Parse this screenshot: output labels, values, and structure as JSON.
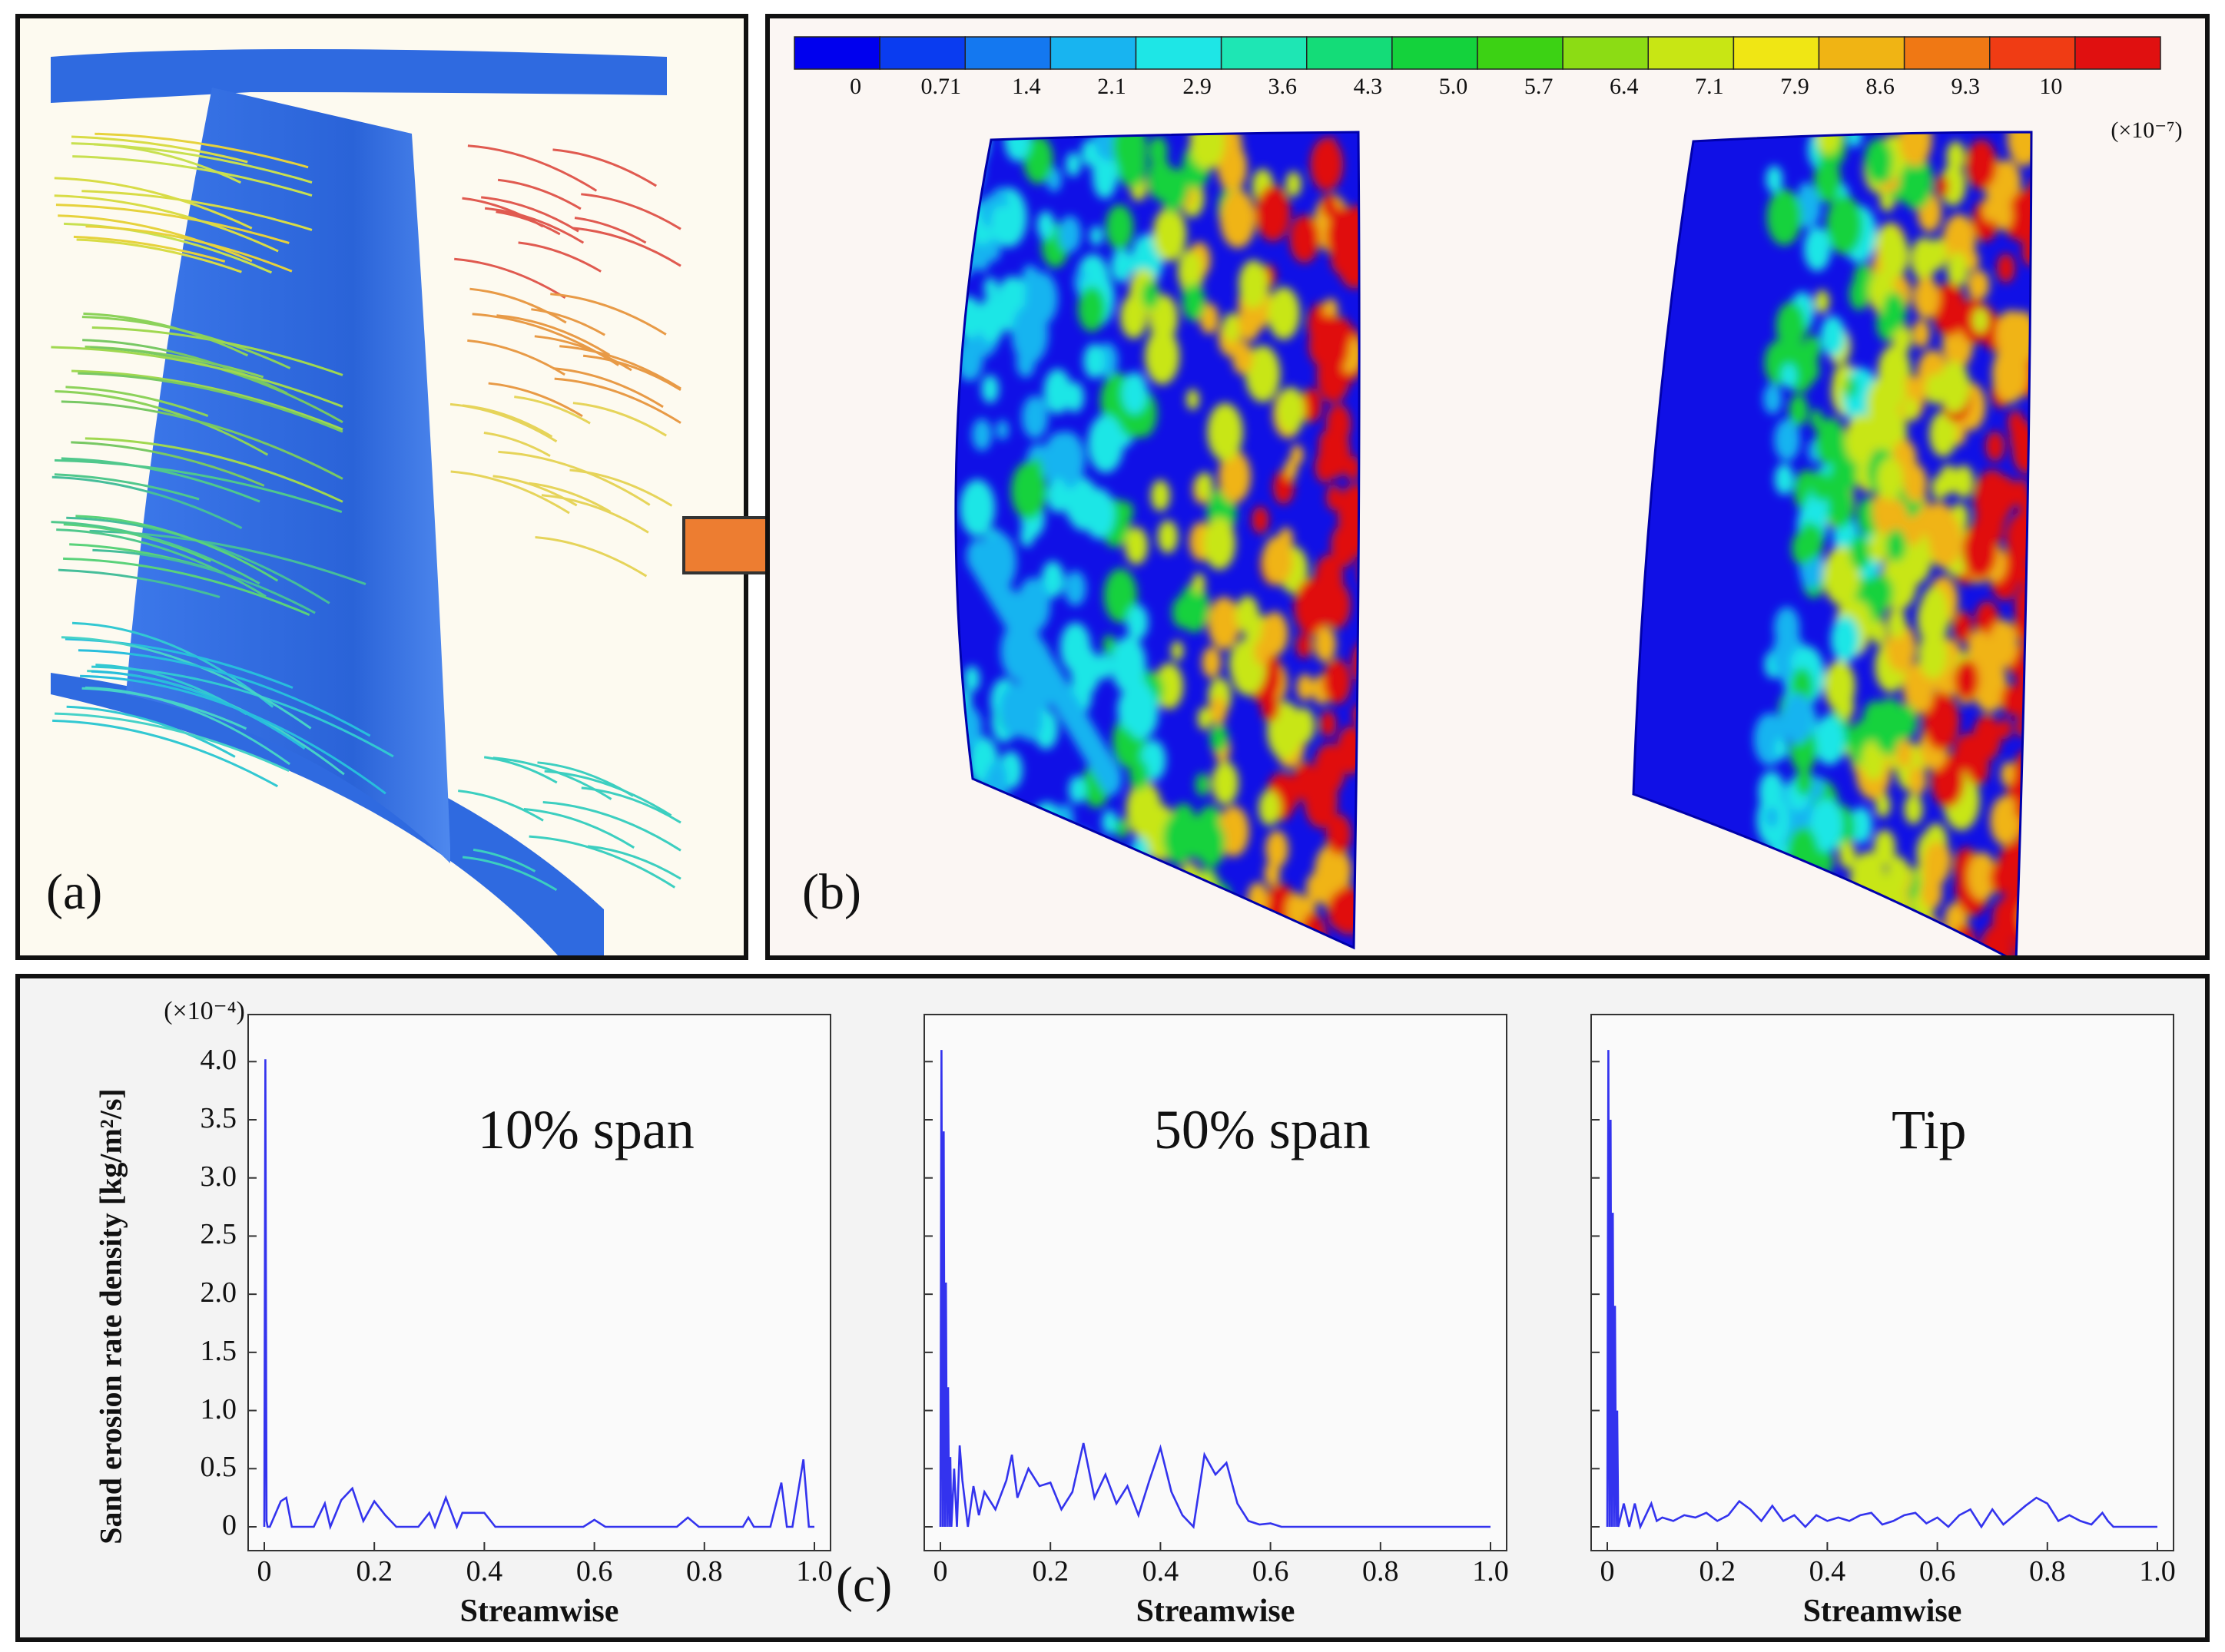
{
  "panel_labels": {
    "a": "(a)",
    "b": "(b)",
    "c": "(c)"
  },
  "colorbar": {
    "ticks": [
      "0",
      "0.71",
      "1.4",
      "2.1",
      "2.9",
      "3.6",
      "4.3",
      "5.0",
      "5.7",
      "6.4",
      "7.1",
      "7.9",
      "8.6",
      "9.3",
      "10"
    ],
    "multiplier": "(×10⁻⁷)",
    "colors": [
      "#0000ee",
      "#0a3cf0",
      "#1478f0",
      "#18b4f0",
      "#1ee6e6",
      "#1ee6b4",
      "#14dc78",
      "#14d23c",
      "#3cd214",
      "#8cdc14",
      "#c8e614",
      "#f0e614",
      "#f0b414",
      "#f07814",
      "#f03c14",
      "#e01010"
    ]
  },
  "arrow_color": "#ed7d31",
  "chart_data": {
    "type": "line",
    "ylabel": "Sand erosion rate density [kg/m²/s]",
    "y_multiplier": "(×10⁻⁴)",
    "xlabel": "Streamwise",
    "xlim": [
      0,
      1.0
    ],
    "ylim": [
      0,
      4.2
    ],
    "x_ticks": [
      "0",
      "0.2",
      "0.4",
      "0.6",
      "0.8",
      "1.0"
    ],
    "y_ticks": [
      "0",
      "0.5",
      "1.0",
      "1.5",
      "2.0",
      "2.5",
      "3.0",
      "3.5",
      "4.0"
    ],
    "line_color": "#3333ee",
    "charts": [
      {
        "title": "10% span",
        "x": [
          0,
          0.002,
          0.004,
          0.006,
          0.01,
          0.03,
          0.04,
          0.05,
          0.09,
          0.11,
          0.12,
          0.14,
          0.16,
          0.18,
          0.2,
          0.22,
          0.24,
          0.28,
          0.3,
          0.31,
          0.33,
          0.35,
          0.36,
          0.4,
          0.42,
          0.58,
          0.6,
          0.62,
          0.75,
          0.77,
          0.79,
          0.87,
          0.88,
          0.89,
          0.92,
          0.94,
          0.95,
          0.96,
          0.98,
          0.99,
          1.0
        ],
        "y": [
          0,
          4.02,
          0.05,
          0,
          0,
          0.22,
          0.25,
          0,
          0,
          0.2,
          0,
          0.23,
          0.33,
          0.05,
          0.22,
          0.1,
          0,
          0,
          0.12,
          0,
          0.25,
          0,
          0.12,
          0.12,
          0,
          0,
          0.06,
          0,
          0,
          0.08,
          0,
          0,
          0.08,
          0,
          0,
          0.38,
          0,
          0,
          0.58,
          0,
          0
        ]
      },
      {
        "title": "50% span",
        "x": [
          0,
          0.002,
          0.004,
          0.006,
          0.008,
          0.01,
          0.012,
          0.014,
          0.016,
          0.018,
          0.02,
          0.025,
          0.03,
          0.035,
          0.04,
          0.05,
          0.06,
          0.07,
          0.08,
          0.1,
          0.12,
          0.13,
          0.14,
          0.16,
          0.18,
          0.2,
          0.22,
          0.24,
          0.26,
          0.28,
          0.3,
          0.32,
          0.34,
          0.36,
          0.38,
          0.4,
          0.42,
          0.44,
          0.46,
          0.48,
          0.5,
          0.52,
          0.54,
          0.56,
          0.58,
          0.6,
          0.62,
          1.0
        ],
        "y": [
          0,
          4.1,
          0,
          3.4,
          0,
          2.1,
          0,
          1.2,
          0,
          0.6,
          0,
          0.5,
          0,
          0.7,
          0.4,
          0,
          0.35,
          0.1,
          0.3,
          0.15,
          0.4,
          0.62,
          0.25,
          0.5,
          0.35,
          0.38,
          0.15,
          0.3,
          0.72,
          0.25,
          0.45,
          0.2,
          0.35,
          0.1,
          0.4,
          0.68,
          0.3,
          0.1,
          0,
          0.62,
          0.45,
          0.55,
          0.2,
          0.05,
          0.02,
          0.03,
          0,
          0
        ]
      },
      {
        "title": "Tip",
        "x": [
          0,
          0.002,
          0.004,
          0.006,
          0.008,
          0.01,
          0.012,
          0.014,
          0.016,
          0.018,
          0.02,
          0.03,
          0.04,
          0.05,
          0.06,
          0.07,
          0.08,
          0.09,
          0.1,
          0.12,
          0.14,
          0.16,
          0.18,
          0.2,
          0.22,
          0.24,
          0.26,
          0.28,
          0.3,
          0.32,
          0.34,
          0.36,
          0.38,
          0.4,
          0.42,
          0.44,
          0.46,
          0.48,
          0.5,
          0.52,
          0.54,
          0.56,
          0.58,
          0.6,
          0.62,
          0.64,
          0.66,
          0.68,
          0.7,
          0.72,
          0.74,
          0.76,
          0.78,
          0.8,
          0.82,
          0.84,
          0.86,
          0.88,
          0.9,
          0.91,
          0.92,
          1.0
        ],
        "y": [
          0,
          4.1,
          0,
          3.5,
          0,
          2.7,
          0,
          1.9,
          0,
          1.0,
          0,
          0.2,
          0,
          0.2,
          0,
          0.1,
          0.2,
          0.05,
          0.08,
          0.05,
          0.1,
          0.08,
          0.12,
          0.05,
          0.1,
          0.22,
          0.15,
          0.05,
          0.18,
          0.05,
          0.1,
          0,
          0.1,
          0.05,
          0.08,
          0.05,
          0.1,
          0.12,
          0.02,
          0.05,
          0.1,
          0.12,
          0.03,
          0.08,
          0,
          0.1,
          0.15,
          0,
          0.15,
          0.02,
          0.1,
          0.18,
          0.25,
          0.2,
          0.05,
          0.1,
          0.05,
          0.02,
          0.12,
          0.05,
          0,
          0
        ]
      }
    ]
  }
}
